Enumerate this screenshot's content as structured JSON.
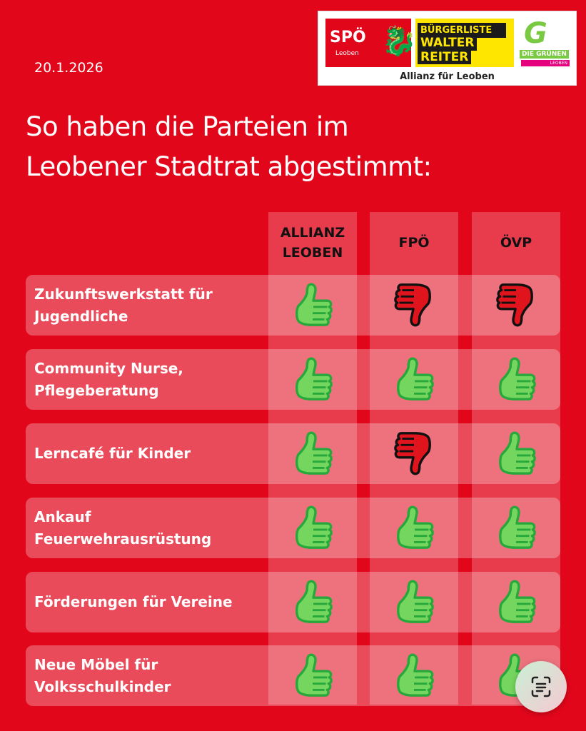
{
  "date": "20.1.2026",
  "title_lines": [
    "So haben die Parteien im",
    "Leobener Stadtrat abgestimmt:"
  ],
  "logo": {
    "spo": "SPÖ",
    "spo_sub": "Leoben",
    "bwr": [
      "BÜRGERLISTE",
      "WALTER",
      "REITER"
    ],
    "gruene": "DIE GRÜNEN",
    "gruene_sub": "LEOBEN",
    "caption": "Allianz für  Leoben"
  },
  "columns": [
    {
      "label_lines": [
        "ALLIANZ",
        "LEOBEN"
      ]
    },
    {
      "label_lines": [
        "FPÖ"
      ]
    },
    {
      "label_lines": [
        "ÖVP"
      ]
    }
  ],
  "rows": [
    {
      "label_lines": [
        "Zukunftswerkstatt für",
        "Jugendliche"
      ],
      "votes": [
        "yes",
        "no",
        "no"
      ]
    },
    {
      "label_lines": [
        "Community Nurse,",
        "Pflegeberatung"
      ],
      "votes": [
        "yes",
        "yes",
        "yes"
      ]
    },
    {
      "label_lines": [
        "Lerncafé für Kinder"
      ],
      "votes": [
        "yes",
        "no",
        "yes"
      ]
    },
    {
      "label_lines": [
        "Ankauf",
        "Feuerwehrausrüstung"
      ],
      "votes": [
        "yes",
        "yes",
        "yes"
      ]
    },
    {
      "label_lines": [
        "Förderungen für Vereine"
      ],
      "votes": [
        "yes",
        "yes",
        "yes"
      ]
    },
    {
      "label_lines": [
        "Neue Möbel für",
        "Volksschulkinder"
      ],
      "votes": [
        "yes",
        "yes",
        "yes"
      ]
    }
  ],
  "colors": {
    "background": "#e2061b",
    "yes": "#74d65e",
    "no": "#e0141c"
  },
  "icons": {
    "yes": "thumbs-up-icon",
    "no": "thumbs-down-icon",
    "scan": "scan-text-icon"
  }
}
